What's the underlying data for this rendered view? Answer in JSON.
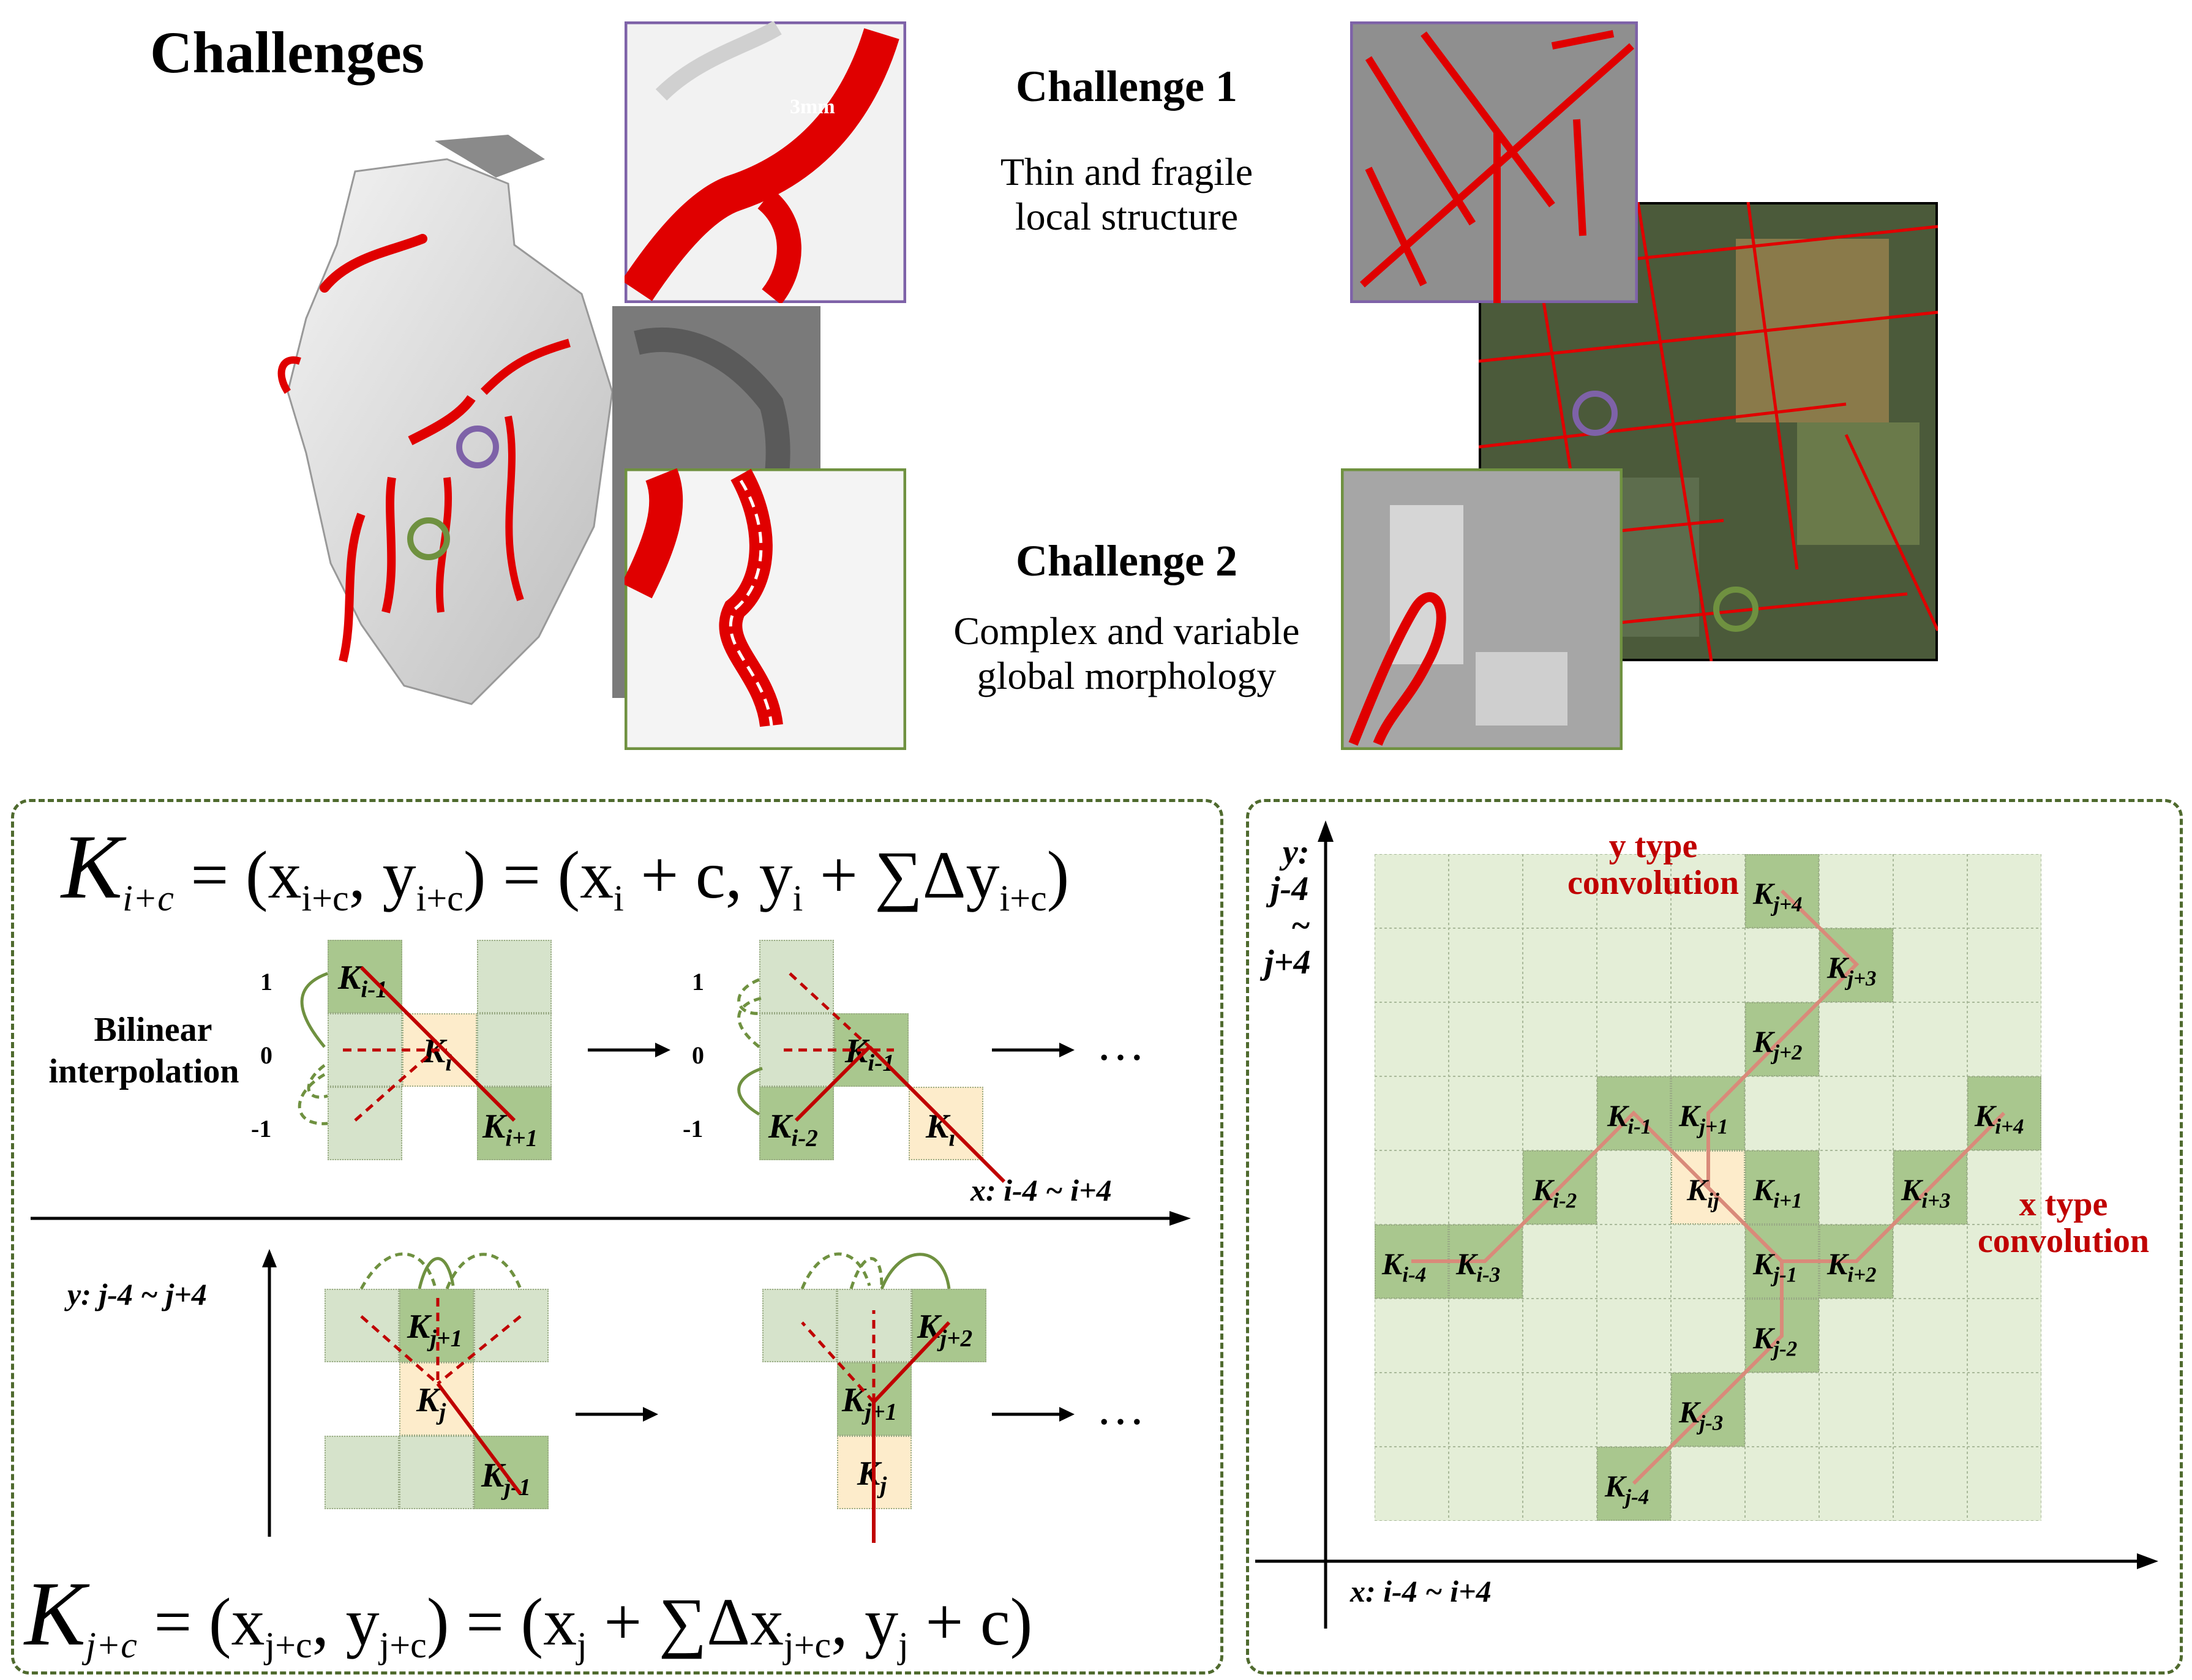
{
  "header": {
    "title": "Challenges",
    "challenge1": {
      "title": "Challenge 1",
      "line1": "Thin and fragile",
      "line2": "local structure"
    },
    "challenge2": {
      "title": "Challenge 2",
      "line1": "Complex and variable",
      "line2": "global morphology"
    },
    "measure_label": "3mm"
  },
  "left_panel": {
    "formula_top": {
      "K": "K",
      "lhs_sub": "i+c",
      "eq": "= (x",
      "sub1": "i+c",
      "mid": ", y",
      "sub2": "i+c",
      "rest": ") = (x",
      "sub3": "i",
      "rest2": " + c, y",
      "sub4": "i",
      "rest3": " + ∑Δy",
      "sub5": "i+c",
      "end": ")"
    },
    "formula_bottom": {
      "K": "K",
      "lhs_sub": "j+c",
      "eq": "= (x",
      "sub1": "j+c",
      "mid": ", y",
      "sub2": "j+c",
      "rest": ") = (x",
      "sub3": "j",
      "rest2": " + ∑Δx",
      "sub4": "j+c",
      "rest3": ", y",
      "sub5": "j",
      "end": " + c)"
    },
    "bilinear_label_1": "Bilinear",
    "bilinear_label_2": "interpolation",
    "offsets": [
      "1",
      "0",
      "-1"
    ],
    "x_axis_label": "x: i-4 ~ i+4",
    "y_axis_label": "y: j-4 ~ j+4",
    "ellipsis": "…",
    "top_row_labels": {
      "k_im1": "K",
      "k_im1_sub": "i-1",
      "k_i": "K",
      "k_i_sub": "i",
      "k_ip1": "K",
      "k_ip1_sub": "i+1",
      "k_im2": "K",
      "k_im2_sub": "i-2"
    },
    "bottom_row_labels": {
      "k_jp1_sub": "j+1",
      "k_j_sub": "j",
      "k_jm1_sub": "j-1",
      "k_jp2_sub": "j+2"
    }
  },
  "right_panel": {
    "y_axis_label_1": "y:",
    "y_axis_label_2": "j-4",
    "y_axis_label_3": "~",
    "y_axis_label_4": "j+4",
    "x_axis_label": "x: i-4 ~ i+4",
    "y_type_1": "y type",
    "y_type_2": "convolution",
    "x_type_1": "x type",
    "x_type_2": "convolution",
    "cells": [
      {
        "sub": "j+4"
      },
      {
        "sub": "j+3"
      },
      {
        "sub": "j+2"
      },
      {
        "sub": "i-1"
      },
      {
        "sub": "j+1"
      },
      {
        "sub": "i+4"
      },
      {
        "sub": "i-2"
      },
      {
        "sub": "ij"
      },
      {
        "sub": "i+1"
      },
      {
        "sub": "i+3"
      },
      {
        "sub": "i-4"
      },
      {
        "sub": "i-3"
      },
      {
        "sub": "j-1"
      },
      {
        "sub": "i+2"
      },
      {
        "sub": "j-2"
      },
      {
        "sub": "j-3"
      },
      {
        "sub": "j-4"
      }
    ]
  },
  "colors": {
    "vessel": "#e00000",
    "panel_border": "#4f6a2e",
    "grid_light": "#e4eed7",
    "grid_dark": "#9fc080",
    "center": "#fdeccb",
    "red_text": "#c00000",
    "purple": "#7e62a8",
    "green": "#6f9140"
  }
}
